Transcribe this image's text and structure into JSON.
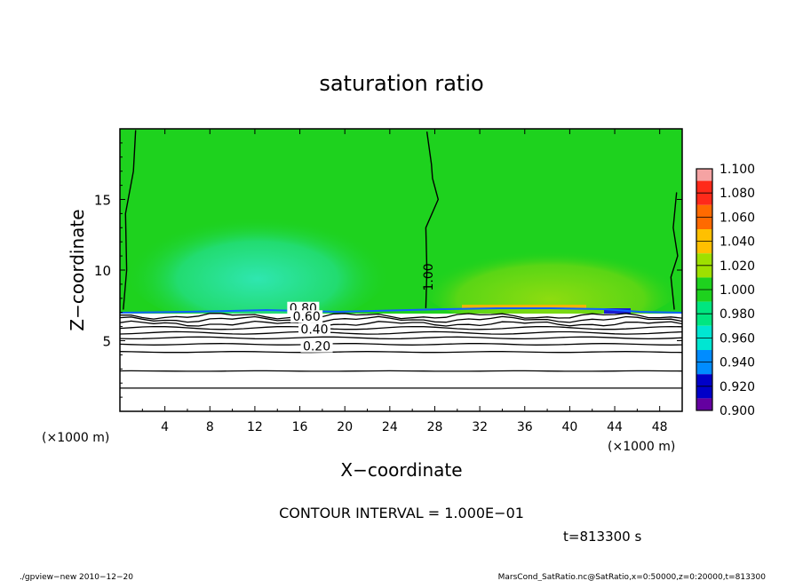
{
  "chart_data": {
    "type": "heatmap",
    "title": "saturation ratio",
    "xlabel": "X−coordinate",
    "ylabel": "Z−coordinate",
    "x_unit_left": "(×1000 m)",
    "x_unit_right": "(×1000 m)",
    "xlim": [
      0,
      50
    ],
    "ylim": [
      0,
      20
    ],
    "x_ticks": [
      4,
      8,
      12,
      16,
      20,
      24,
      28,
      32,
      36,
      40,
      44,
      48
    ],
    "x_tick_labels": [
      "4",
      "8",
      "12",
      "16",
      "20",
      "24",
      "28",
      "32",
      "36",
      "40",
      "44",
      "48"
    ],
    "y_ticks": [
      5,
      10,
      15
    ],
    "y_tick_labels": [
      "5",
      "10",
      "15"
    ],
    "colorbar": {
      "min": 0.9,
      "max": 1.1,
      "labels": [
        "1.100",
        "1.080",
        "1.060",
        "1.040",
        "1.020",
        "1.000",
        "0.980",
        "0.960",
        "0.940",
        "0.920",
        "0.900"
      ],
      "colors": [
        "#f5a3a3",
        "#ff2a1a",
        "#ff6a00",
        "#ffc000",
        "#9ee000",
        "#1ed21e",
        "#00e680",
        "#00e6d2",
        "#008cff",
        "#0000c8",
        "#6400a0"
      ]
    },
    "contour_lines": [
      {
        "label": "1.00",
        "x": 27.5,
        "z": 9.5
      },
      {
        "label": "0.80",
        "x": 16.3,
        "z": 7.0
      },
      {
        "label": "0.60",
        "x": 16.6,
        "z": 6.4
      },
      {
        "label": "0.40",
        "x": 17.3,
        "z": 5.5
      },
      {
        "label": "0.20",
        "x": 17.5,
        "z": 4.3
      }
    ],
    "saturated_layer_base_z": 7.0,
    "contour_interval_text": "CONTOUR INTERVAL = 1.000E−01",
    "time_text": "t=813300 s"
  },
  "footer": {
    "left": "./gpview−new   2010−12−20",
    "right": "MarsCond_SatRatio.nc@SatRatio,x=0:50000,z=0:20000,t=813300"
  }
}
